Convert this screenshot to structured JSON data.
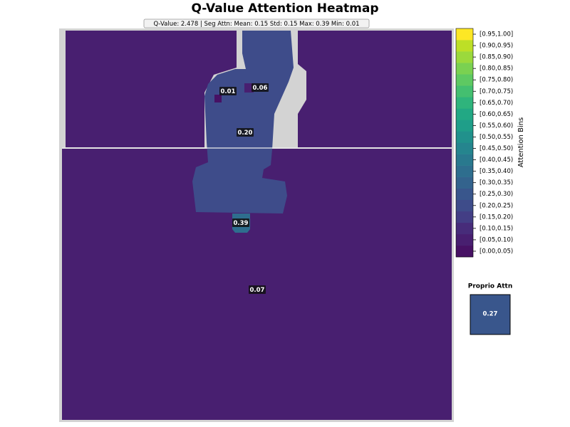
{
  "chart_data": {
    "type": "attention-map",
    "title": "Q-Value Attention Heatmap",
    "subtitle": "Q-Value: 2.478  |  Seg Attn: Mean: 0.15 Std: 0.15 Max: 0.39 Min: 0.01",
    "segments": {
      "values": [
        0.07,
        0.2,
        0.01,
        0.06,
        0.39
      ],
      "value_labels": [
        "0.07",
        "0.20",
        "0.01",
        "0.06",
        "0.39"
      ]
    },
    "colorbar": {
      "label": "Attention Bins",
      "bins": [
        "[0.00,0.05)",
        "[0.05,0.10)",
        "[0.10,0.15)",
        "[0.15,0.20)",
        "[0.20,0.25)",
        "[0.25,0.30)",
        "[0.30,0.35)",
        "[0.35,0.40)",
        "[0.40,0.45)",
        "[0.45,0.50)",
        "[0.50,0.55)",
        "[0.55,0.60)",
        "[0.60,0.65)",
        "[0.65,0.70)",
        "[0.70,0.75)",
        "[0.75,0.80)",
        "[0.80,0.85)",
        "[0.85,0.90)",
        "[0.90,0.95)",
        "[0.95,1.00]"
      ],
      "colors": [
        "#471164",
        "#481f70",
        "#472c7a",
        "#433e85",
        "#3e4c8a",
        "#39568c",
        "#33638d",
        "#2e6e8e",
        "#29798e",
        "#25858e",
        "#21918c",
        "#1f9e89",
        "#22a884",
        "#2fb47c",
        "#44bf70",
        "#5ec962",
        "#7ad151",
        "#9bd93c",
        "#bddf26",
        "#fde725"
      ]
    },
    "proprio": {
      "title": "Proprio Attn",
      "value": 0.27
    }
  }
}
